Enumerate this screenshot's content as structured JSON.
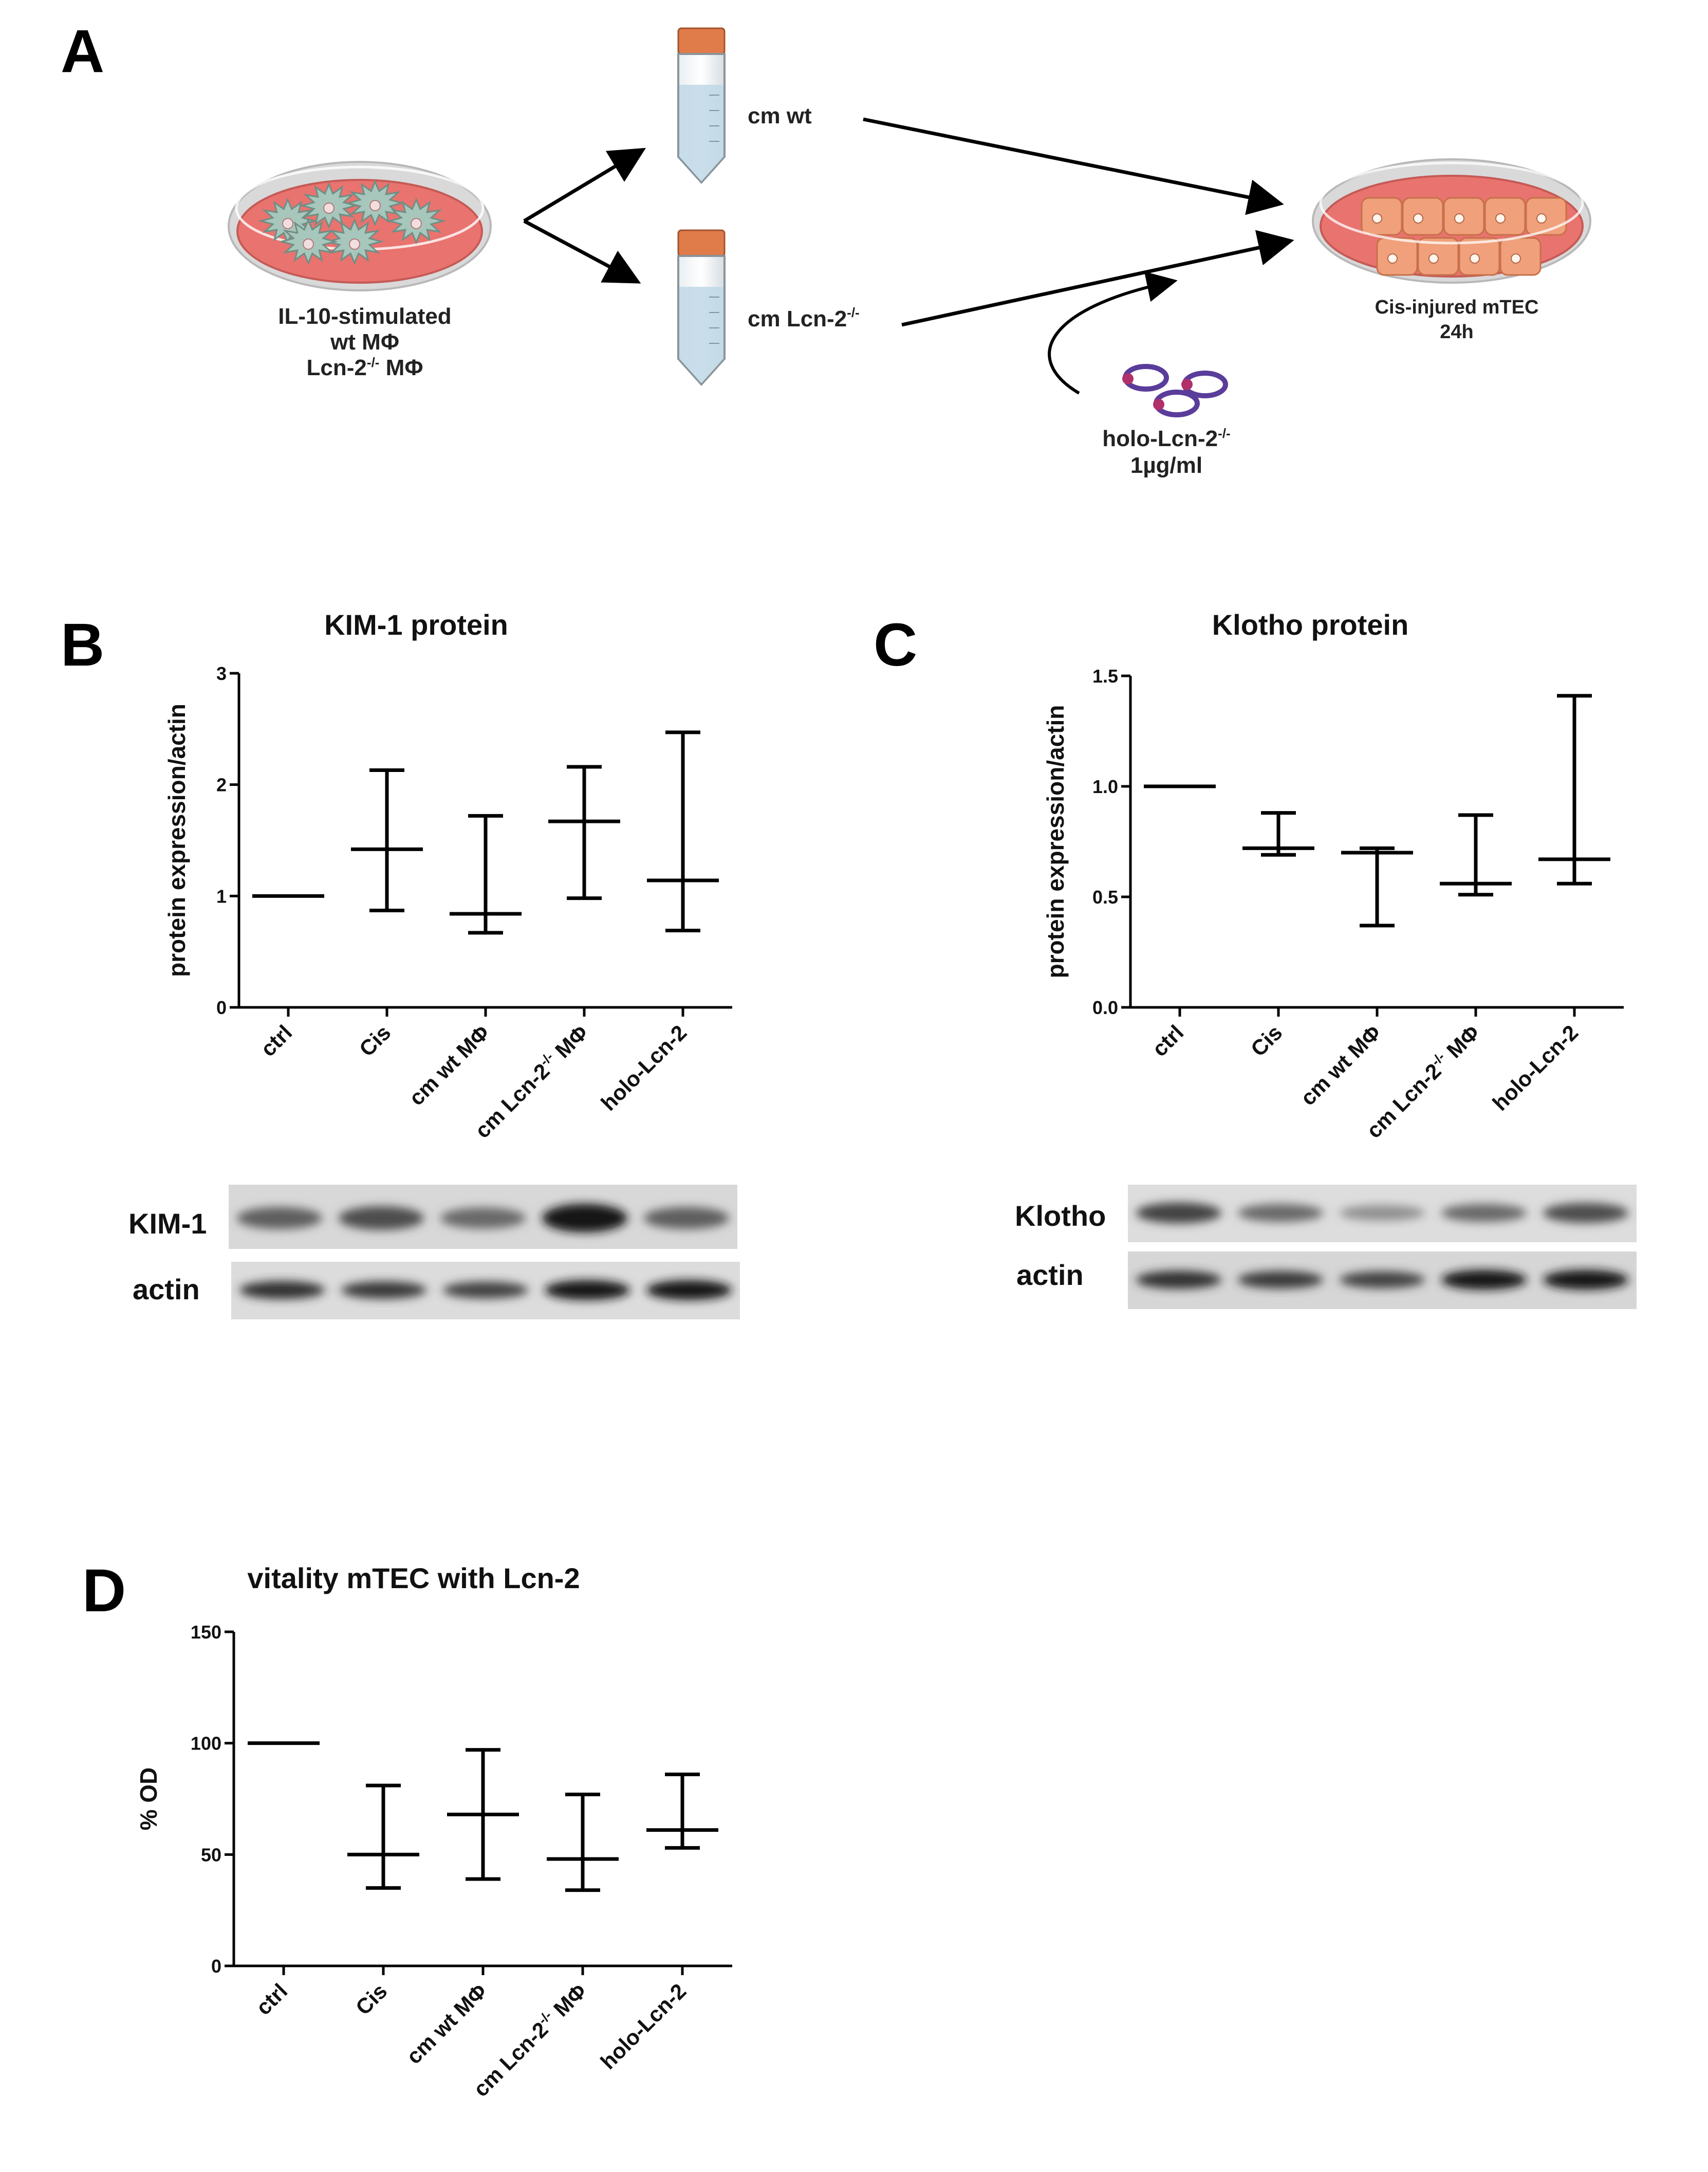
{
  "panels": {
    "a": "A",
    "b": "B",
    "c": "C",
    "d": "D"
  },
  "diagram": {
    "macrophage_label_1": "IL-10-stimulated",
    "macrophage_label_2": "wt MΦ",
    "macrophage_label_3": "Lcn-2",
    "macrophage_label_3_sup": "-/-",
    "macrophage_label_3_tail": " MΦ",
    "cm_wt": "cm wt",
    "cm_lcn": "cm Lcn-2",
    "cm_lcn_sup": "-/-",
    "holo_label": "holo-Lcn-2",
    "holo_sup": "-/-",
    "holo_dose": "1µg/ml",
    "target_label_1": "Cis-injured mTEC",
    "target_label_2": "24h",
    "colors": {
      "dish_fill": "#e8736f",
      "dish_rim": "#cfcfcf",
      "cell_green": "#a7c6bc",
      "cell_orange": "#f0a07a",
      "tube_cap": "#e07b4a",
      "tube_liquid": "#bfd8e6",
      "lcn_purple": "#5a3d9a",
      "lcn_red": "#b0306a"
    }
  },
  "blots": {
    "kim1_label": "KIM-1",
    "kim1_actin_label": "actin",
    "klotho_label": "Klotho",
    "klotho_actin_label": "actin",
    "kim1_band_intensity": [
      0.55,
      0.65,
      0.5,
      0.95,
      0.55
    ],
    "kim1_actin_intensity": [
      0.8,
      0.75,
      0.7,
      0.95,
      0.95
    ],
    "klotho_band_intensity": [
      0.7,
      0.5,
      0.3,
      0.5,
      0.65
    ],
    "klotho_actin_intensity": [
      0.8,
      0.75,
      0.7,
      0.95,
      0.95
    ]
  },
  "chart_data": [
    {
      "type": "scatter",
      "title": "KIM-1 protein",
      "xlabel": "",
      "ylabel": "protein expression/actin",
      "ylim": [
        0,
        3
      ],
      "yticks": [
        "0",
        "1",
        "2",
        "3"
      ],
      "categories": [
        "ctrl",
        "Cis",
        "cm wt MΦ",
        "cm Lcn-2",
        "holo-Lcn-2"
      ],
      "category_sup": [
        "",
        "",
        "",
        "-/-",
        ""
      ],
      "category_tail": [
        "",
        "",
        "",
        " MΦ",
        ""
      ],
      "median": [
        1.0,
        1.42,
        0.84,
        1.67,
        1.14
      ],
      "low": [
        1.0,
        0.87,
        0.67,
        0.98,
        0.69
      ],
      "high": [
        1.0,
        2.13,
        1.72,
        2.16,
        2.47
      ]
    },
    {
      "type": "scatter",
      "title": "Klotho protein",
      "xlabel": "",
      "ylabel": "protein expression/actin",
      "ylim": [
        0,
        1.5
      ],
      "yticks": [
        "0.0",
        "0.5",
        "1.0",
        "1.5"
      ],
      "categories": [
        "ctrl",
        "Cis",
        "cm wt MΦ",
        "cm Lcn-2",
        "holo-Lcn-2"
      ],
      "category_sup": [
        "",
        "",
        "",
        "-/-",
        ""
      ],
      "category_tail": [
        "",
        "",
        "",
        " MΦ",
        ""
      ],
      "median": [
        1.0,
        0.72,
        0.7,
        0.56,
        0.67
      ],
      "low": [
        1.0,
        0.69,
        0.37,
        0.51,
        0.56
      ],
      "high": [
        1.0,
        0.88,
        0.72,
        0.87,
        1.41
      ]
    },
    {
      "type": "scatter",
      "title": "vitality mTEC with Lcn-2",
      "xlabel": "",
      "ylabel": "% OD",
      "ylim": [
        0,
        150
      ],
      "yticks": [
        "0",
        "50",
        "100",
        "150"
      ],
      "categories": [
        "ctrl",
        "Cis",
        "cm wt MΦ",
        "cm Lcn-2",
        "holo-Lcn-2"
      ],
      "category_sup": [
        "",
        "",
        "",
        "-/-",
        ""
      ],
      "category_tail": [
        "",
        "",
        "",
        " MΦ",
        ""
      ],
      "median": [
        100,
        50,
        68,
        48,
        61
      ],
      "low": [
        100,
        35,
        39,
        34,
        53
      ],
      "high": [
        100,
        81,
        97,
        77,
        86
      ]
    }
  ]
}
